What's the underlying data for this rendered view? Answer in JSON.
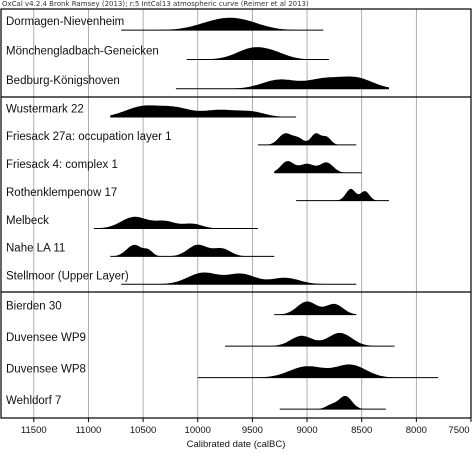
{
  "header": "OxCal v4.2.4 Bronk Ramsey (2013); r:5 IntCal13 atmospheric curve (Reimer et al 2013)",
  "chart_data": {
    "type": "range-density",
    "title": "",
    "xlabel": "Calibrated date (calBC)",
    "ylabel": "",
    "xlim": [
      11800,
      7500
    ],
    "xreversed": true,
    "xticks": [
      11500,
      11000,
      10500,
      10000,
      9500,
      9000,
      8500,
      8000,
      7500
    ],
    "grid": true,
    "groups": [
      {
        "items": [
          {
            "name": "Dormagen-Nievenheim",
            "range": [
              10700,
              8850
            ],
            "peaks": [
              {
                "c": 9780,
                "w": 200,
                "h": 1.0
              },
              {
                "c": 9550,
                "w": 170,
                "h": 0.5
              }
            ]
          },
          {
            "name": "Mönchengladbach-Geneicken",
            "range": [
              10100,
              8800
            ],
            "peaks": [
              {
                "c": 9490,
                "w": 150,
                "h": 1.0
              },
              {
                "c": 9280,
                "w": 120,
                "h": 0.35
              }
            ]
          },
          {
            "name": "Bedburg-Königshoven",
            "range": [
              10200,
              8250
            ],
            "peaks": [
              {
                "c": 9250,
                "w": 160,
                "h": 0.6
              },
              {
                "c": 8850,
                "w": 150,
                "h": 0.6
              },
              {
                "c": 8550,
                "w": 150,
                "h": 0.7
              }
            ]
          }
        ]
      },
      {
        "items": [
          {
            "name": "Wustermark 22",
            "range": [
              10800,
              9100
            ],
            "peaks": [
              {
                "c": 10500,
                "w": 160,
                "h": 0.9
              },
              {
                "c": 10200,
                "w": 140,
                "h": 0.7
              },
              {
                "c": 9800,
                "w": 160,
                "h": 0.6
              },
              {
                "c": 9500,
                "w": 120,
                "h": 0.4
              }
            ]
          },
          {
            "name": "Friesack 27a: occupation layer 1",
            "range": [
              9450,
              8550
            ],
            "peaks": [
              {
                "c": 9200,
                "w": 60,
                "h": 0.9
              },
              {
                "c": 9080,
                "w": 50,
                "h": 0.5
              },
              {
                "c": 8920,
                "w": 45,
                "h": 0.9
              },
              {
                "c": 8820,
                "w": 40,
                "h": 0.6
              }
            ]
          },
          {
            "name": "Friesack 4: complex 1",
            "range": [
              9300,
              8500
            ],
            "peaks": [
              {
                "c": 9180,
                "w": 60,
                "h": 0.9
              },
              {
                "c": 9000,
                "w": 70,
                "h": 0.7
              },
              {
                "c": 8820,
                "w": 60,
                "h": 0.8
              }
            ]
          },
          {
            "name": "Rothenklempenow 17",
            "range": [
              9100,
              8250
            ],
            "peaks": [
              {
                "c": 8600,
                "w": 45,
                "h": 1.0
              },
              {
                "c": 8470,
                "w": 40,
                "h": 0.8
              }
            ]
          },
          {
            "name": "Melbeck",
            "range": [
              10950,
              9450
            ],
            "peaks": [
              {
                "c": 10580,
                "w": 120,
                "h": 1.0
              },
              {
                "c": 10300,
                "w": 100,
                "h": 0.6
              },
              {
                "c": 10050,
                "w": 90,
                "h": 0.4
              }
            ]
          },
          {
            "name": "Nahe LA 11",
            "range": [
              10800,
              9300
            ],
            "peaks": [
              {
                "c": 10580,
                "w": 70,
                "h": 0.9
              },
              {
                "c": 10450,
                "w": 40,
                "h": 0.4
              },
              {
                "c": 10000,
                "w": 90,
                "h": 0.9
              },
              {
                "c": 9780,
                "w": 80,
                "h": 0.6
              }
            ]
          },
          {
            "name": "Stellmoor (Upper Layer)",
            "range": [
              10700,
              8550
            ],
            "peaks": [
              {
                "c": 9950,
                "w": 140,
                "h": 0.9
              },
              {
                "c": 9600,
                "w": 130,
                "h": 0.8
              },
              {
                "c": 9200,
                "w": 130,
                "h": 0.5
              }
            ]
          }
        ]
      },
      {
        "items": [
          {
            "name": "Bierden 30",
            "range": [
              9300,
              8550
            ],
            "peaks": [
              {
                "c": 9000,
                "w": 90,
                "h": 1.0
              },
              {
                "c": 8750,
                "w": 80,
                "h": 0.8
              }
            ]
          },
          {
            "name": "Duvensee WP9",
            "range": [
              9750,
              8200
            ],
            "peaks": [
              {
                "c": 9050,
                "w": 100,
                "h": 0.7
              },
              {
                "c": 8700,
                "w": 110,
                "h": 0.9
              }
            ]
          },
          {
            "name": "Duvensee WP8",
            "range": [
              10000,
              7800
            ],
            "peaks": [
              {
                "c": 9000,
                "w": 160,
                "h": 0.8
              },
              {
                "c": 8600,
                "w": 140,
                "h": 0.9
              }
            ]
          },
          {
            "name": "Wehldorf 7",
            "range": [
              9250,
              8280
            ],
            "peaks": [
              {
                "c": 8780,
                "w": 50,
                "h": 0.3
              },
              {
                "c": 8650,
                "w": 60,
                "h": 1.0
              }
            ]
          }
        ]
      }
    ]
  }
}
